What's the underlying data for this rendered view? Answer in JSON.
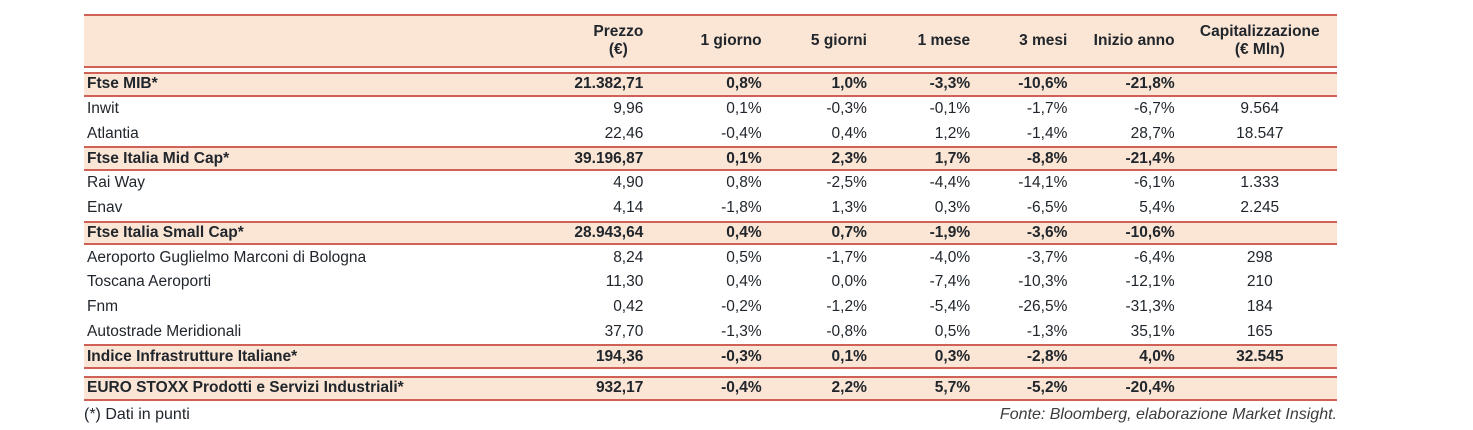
{
  "table": {
    "header": {
      "name_col": "",
      "cols": [
        {
          "key": "prezzo",
          "line1": "Prezzo",
          "line2": "(€)"
        },
        {
          "key": "giorno1",
          "line1": "1 giorno",
          "line2": ""
        },
        {
          "key": "giorni5",
          "line1": "5 giorni",
          "line2": ""
        },
        {
          "key": "mese1",
          "line1": "1 mese",
          "line2": ""
        },
        {
          "key": "mesi3",
          "line1": "3 mesi",
          "line2": ""
        },
        {
          "key": "inizio_anno",
          "line1": "Inizio anno",
          "line2": ""
        },
        {
          "key": "capitalizzazione",
          "line1": "Capitalizzazione",
          "line2": "(€ Mln)"
        }
      ]
    },
    "rows": [
      {
        "id": "ftse-mib",
        "kind": "index",
        "label": "Ftse MIB*",
        "values": [
          "21.382,71",
          "0,8%",
          "1,0%",
          "-3,3%",
          "-10,6%",
          "-21,8%",
          ""
        ]
      },
      {
        "id": "inwit",
        "kind": "stock",
        "label": "Inwit",
        "values": [
          "9,96",
          "0,1%",
          "-0,3%",
          "-0,1%",
          "-1,7%",
          "-6,7%",
          "9.564"
        ]
      },
      {
        "id": "atlantia",
        "kind": "stock",
        "label": "Atlantia",
        "values": [
          "22,46",
          "-0,4%",
          "0,4%",
          "1,2%",
          "-1,4%",
          "28,7%",
          "18.547"
        ]
      },
      {
        "id": "ftse-italia-mid-cap",
        "kind": "index",
        "label": "Ftse Italia Mid Cap*",
        "values": [
          "39.196,87",
          "0,1%",
          "2,3%",
          "1,7%",
          "-8,8%",
          "-21,4%",
          ""
        ]
      },
      {
        "id": "rai-way",
        "kind": "stock",
        "label": "Rai Way",
        "values": [
          "4,90",
          "0,8%",
          "-2,5%",
          "-4,4%",
          "-14,1%",
          "-6,1%",
          "1.333"
        ]
      },
      {
        "id": "enav",
        "kind": "stock",
        "label": "Enav",
        "values": [
          "4,14",
          "-1,8%",
          "1,3%",
          "0,3%",
          "-6,5%",
          "5,4%",
          "2.245"
        ]
      },
      {
        "id": "ftse-italia-small-cap",
        "kind": "index",
        "label": "Ftse Italia Small Cap*",
        "values": [
          "28.943,64",
          "0,4%",
          "0,7%",
          "-1,9%",
          "-3,6%",
          "-10,6%",
          ""
        ]
      },
      {
        "id": "aeroporto-bologna",
        "kind": "stock",
        "label": "Aeroporto Guglielmo Marconi di Bologna",
        "values": [
          "8,24",
          "0,5%",
          "-1,7%",
          "-4,0%",
          "-3,7%",
          "-6,4%",
          "298"
        ]
      },
      {
        "id": "toscana-aeroporti",
        "kind": "stock",
        "label": "Toscana Aeroporti",
        "values": [
          "11,30",
          "0,4%",
          "0,0%",
          "-7,4%",
          "-10,3%",
          "-12,1%",
          "210"
        ]
      },
      {
        "id": "fnm",
        "kind": "stock",
        "label": "Fnm",
        "values": [
          "0,42",
          "-0,2%",
          "-1,2%",
          "-5,4%",
          "-26,5%",
          "-31,3%",
          "184"
        ]
      },
      {
        "id": "autostrade-meridionali",
        "kind": "stock",
        "label": "Autostrade Meridionali",
        "values": [
          "37,70",
          "-1,3%",
          "-0,8%",
          "0,5%",
          "-1,3%",
          "35,1%",
          "165"
        ]
      },
      {
        "id": "indice-infrastrutture",
        "kind": "index",
        "label": "Indice Infrastrutture Italiane*",
        "values": [
          "194,36",
          "-0,3%",
          "0,1%",
          "0,3%",
          "-2,8%",
          "4,0%",
          "32.545"
        ]
      },
      {
        "id": "gap-before-eurostoxx",
        "kind": "gap",
        "size": "md"
      },
      {
        "id": "euro-stoxx",
        "kind": "index",
        "label": "EURO STOXX Prodotti e Servizi Industriali*",
        "values": [
          "932,17",
          "-0,4%",
          "2,2%",
          "5,7%",
          "-5,2%",
          "-20,4%",
          ""
        ]
      }
    ]
  },
  "footer": {
    "footnote": "(*) Dati in punti",
    "source": "Fonte: Bloomberg, elaborazione Market Insight."
  },
  "colors": {
    "rule_red": "#cf6156",
    "band_peach": "#fbe5d4",
    "text_dark": "#20262c",
    "source_gray": "#3d3d3d"
  }
}
